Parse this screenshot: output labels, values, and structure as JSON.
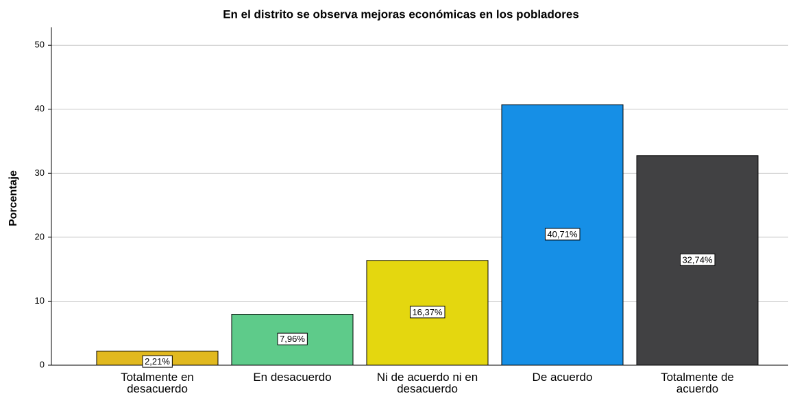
{
  "chart_data": {
    "type": "bar",
    "title": "En el distrito se observa mejoras económicas en los pobladores",
    "y_label": "Porcentaje",
    "categories": [
      "Totalmente en desacuerdo",
      "En desacuerdo",
      "Ni de acuerdo ni en desacuerdo",
      "De acuerdo",
      "Totalmente de acuerdo"
    ],
    "values": [
      2.21,
      7.96,
      16.37,
      40.71,
      32.74
    ],
    "value_labels": [
      "2,21%",
      "7,96%",
      "16,37%",
      "40,71%",
      "32,74%"
    ],
    "colors": [
      "#e1b91f",
      "#5ecb8a",
      "#e4d70f",
      "#168fe6",
      "#414143"
    ],
    "ylim": [
      0,
      52.8
    ],
    "yticks": [
      0,
      10,
      20,
      30,
      40,
      50
    ],
    "grid": true
  }
}
